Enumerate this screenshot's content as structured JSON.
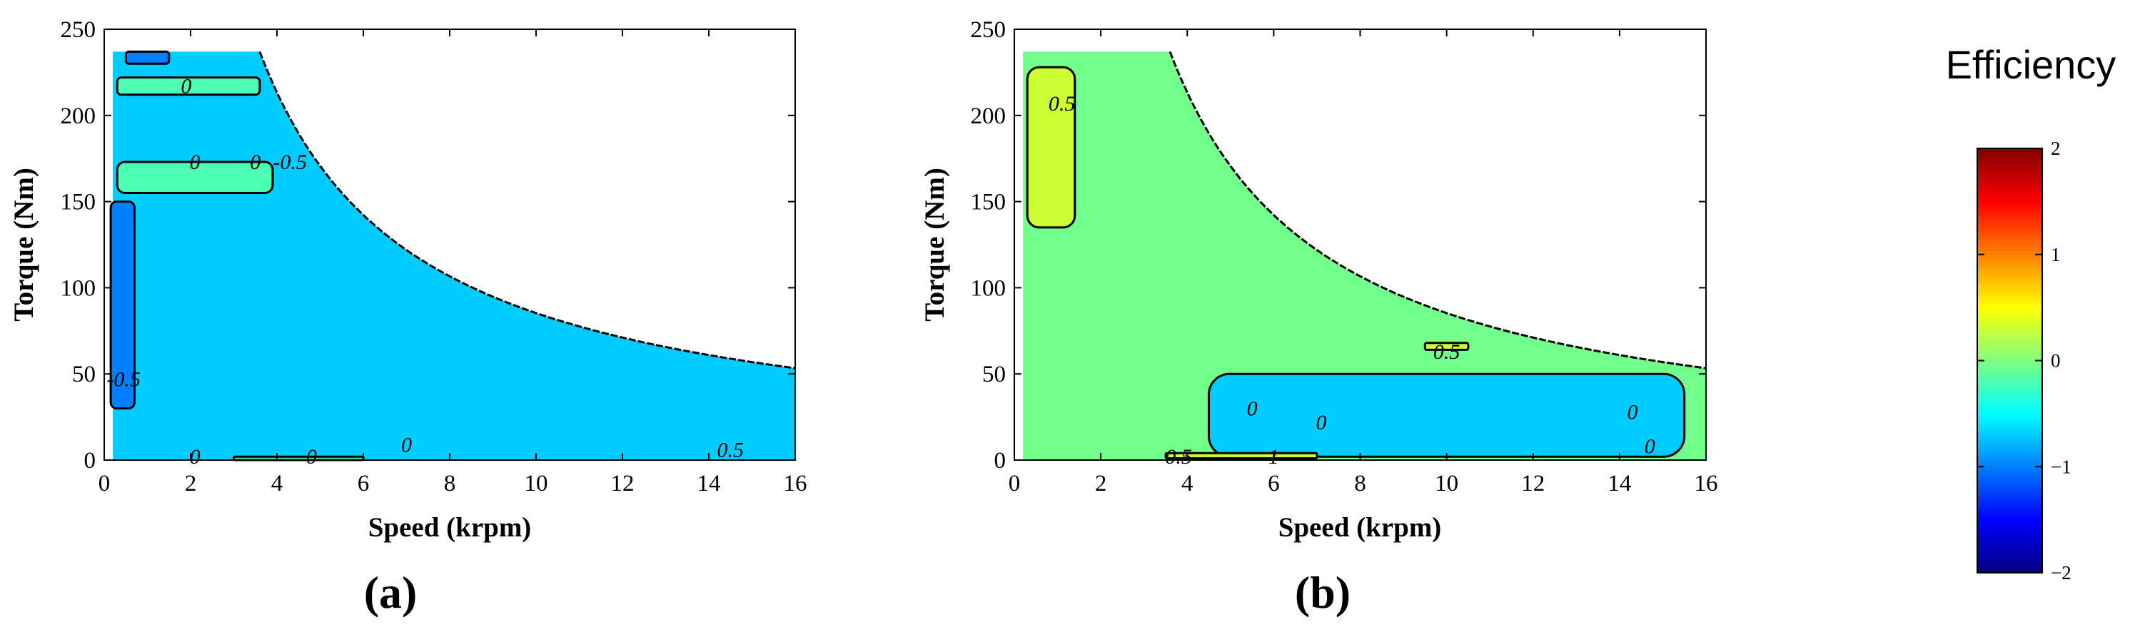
{
  "figure": {
    "colorbar": {
      "title": "Efficiency",
      "range": [
        -2,
        2
      ],
      "ticks": [
        2,
        1,
        0,
        -1,
        -2
      ],
      "tick_labels": [
        "2",
        "1",
        "0",
        "−1",
        "−2"
      ],
      "colormap": "jet"
    }
  },
  "chart_data": [
    {
      "type": "heatmap",
      "panel_label": "(a)",
      "title": "",
      "xlabel": "Speed (krpm)",
      "ylabel": "Torque (Nm)",
      "xlim": [
        0,
        16
      ],
      "ylim": [
        0,
        250
      ],
      "xticks": [
        0,
        2,
        4,
        6,
        8,
        10,
        12,
        14,
        16
      ],
      "yticks": [
        0,
        50,
        100,
        150,
        200,
        250
      ],
      "max_torque_nm": 237,
      "base_speed_krpm": 3.6,
      "dominant_level": -0.7,
      "regions": [
        {
          "level": -0.2,
          "x": [
            0.3,
            3.6
          ],
          "y": [
            212,
            222
          ]
        },
        {
          "level": -0.2,
          "x": [
            0.3,
            3.9
          ],
          "y": [
            155,
            173
          ]
        },
        {
          "level": -1.0,
          "x": [
            0.15,
            0.7
          ],
          "y": [
            30,
            150
          ]
        },
        {
          "level": -1.0,
          "x": [
            0.5,
            1.5
          ],
          "y": [
            230,
            237
          ]
        },
        {
          "level": -0.2,
          "x": [
            3.0,
            6.0
          ],
          "y": [
            0,
            2
          ]
        }
      ],
      "contour_labels": [
        {
          "text": "0",
          "x": 1.9,
          "y": 217
        },
        {
          "text": "0",
          "x": 2.1,
          "y": 173
        },
        {
          "text": "0",
          "x": 3.5,
          "y": 173
        },
        {
          "text": "-0.5",
          "x": 4.3,
          "y": 173
        },
        {
          "text": "-0.5",
          "x": 0.45,
          "y": 47
        },
        {
          "text": "0",
          "x": 2.1,
          "y": 2
        },
        {
          "text": "0",
          "x": 4.8,
          "y": 2
        },
        {
          "text": "0",
          "x": 7.0,
          "y": 9
        },
        {
          "text": "0.5",
          "x": 14.5,
          "y": 6
        }
      ]
    },
    {
      "type": "heatmap",
      "panel_label": "(b)",
      "title": "",
      "xlabel": "Speed (krpm)",
      "ylabel": "Torque (Nm)",
      "xlim": [
        0,
        16
      ],
      "ylim": [
        0,
        250
      ],
      "xticks": [
        0,
        2,
        4,
        6,
        8,
        10,
        12,
        14,
        16
      ],
      "yticks": [
        0,
        50,
        100,
        150,
        200,
        250
      ],
      "max_torque_nm": 237,
      "base_speed_krpm": 3.6,
      "dominant_level": -0.05,
      "regions": [
        {
          "level": 0.3,
          "x": [
            0.3,
            1.4
          ],
          "y": [
            135,
            228
          ]
        },
        {
          "level": -0.7,
          "x": [
            4.5,
            15.5
          ],
          "y": [
            2,
            50
          ]
        },
        {
          "level": 0.3,
          "x": [
            9.5,
            10.5
          ],
          "y": [
            64,
            68
          ]
        },
        {
          "level": 0.3,
          "x": [
            3.5,
            7.0
          ],
          "y": [
            1,
            4
          ]
        }
      ],
      "contour_labels": [
        {
          "text": "0.5",
          "x": 1.1,
          "y": 207
        },
        {
          "text": "0.5",
          "x": 10.0,
          "y": 63
        },
        {
          "text": "0",
          "x": 5.5,
          "y": 30
        },
        {
          "text": "0",
          "x": 7.1,
          "y": 22
        },
        {
          "text": "0",
          "x": 14.3,
          "y": 28
        },
        {
          "text": "0",
          "x": 14.7,
          "y": 8
        },
        {
          "text": "0.5",
          "x": 3.8,
          "y": 2
        },
        {
          "text": "1",
          "x": 6.0,
          "y": 2
        }
      ]
    }
  ]
}
